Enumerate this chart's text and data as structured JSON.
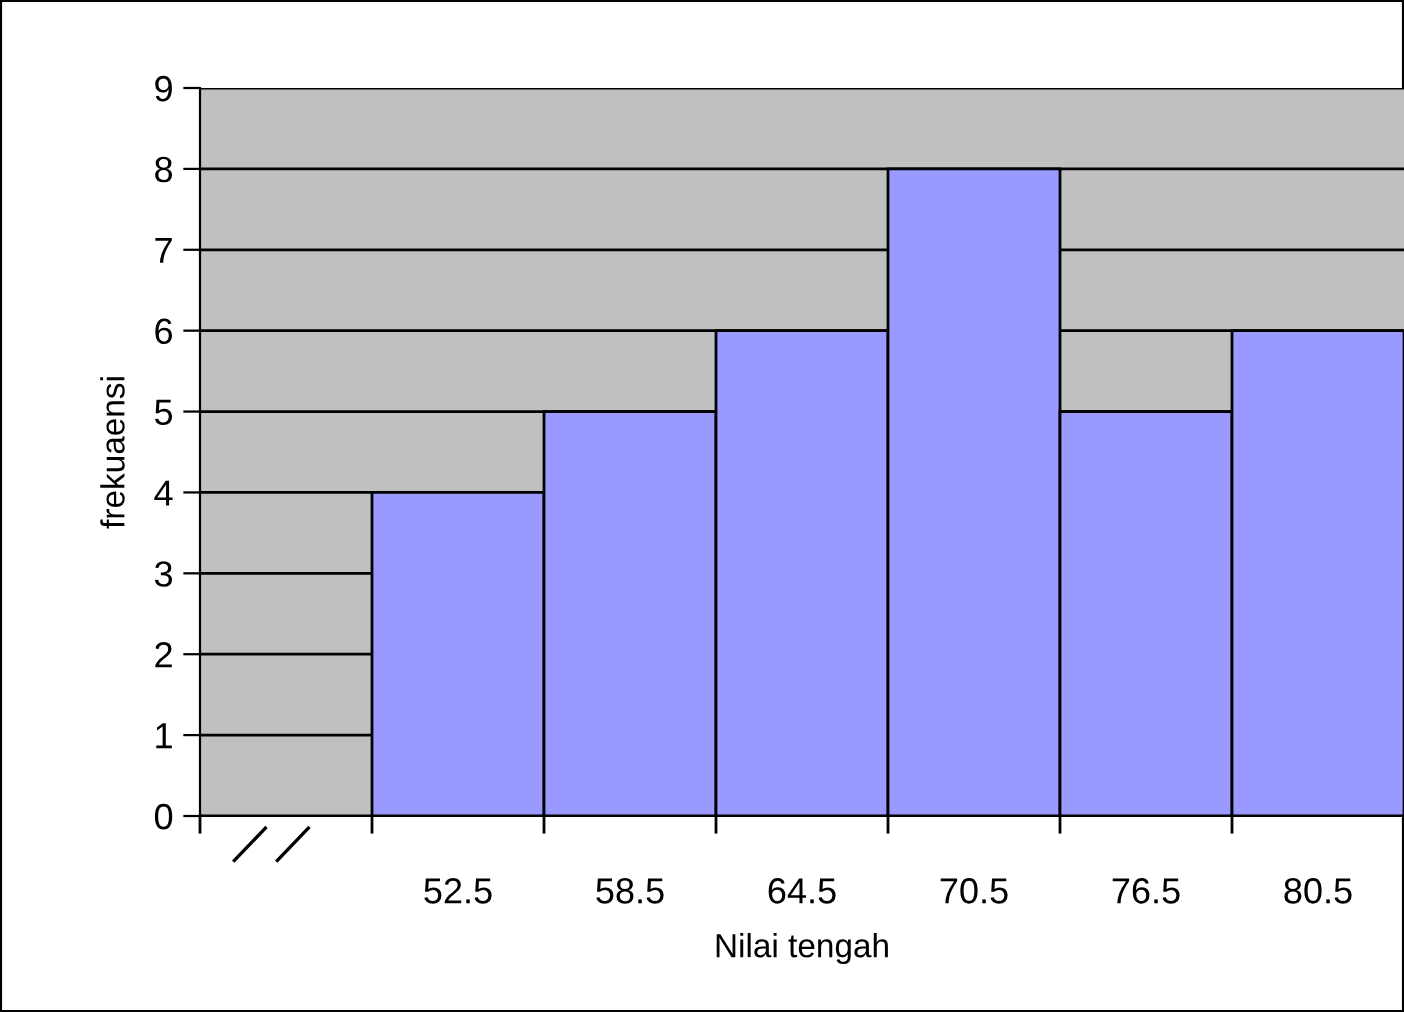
{
  "chart_data": {
    "type": "bar",
    "xlabel": "Nilai tengah",
    "ylabel": "frekuaensi",
    "categories": [
      null,
      "52.5",
      "58.5",
      "64.5",
      "70.5",
      "76.5",
      "80.5"
    ],
    "values": [
      null,
      4,
      5,
      6,
      8,
      5,
      6
    ],
    "color": "#9999ff",
    "ylim": [
      0,
      9
    ],
    "yticks": [
      0,
      1,
      2,
      3,
      4,
      5,
      6,
      7,
      8,
      9
    ],
    "grid": "y",
    "legend": false
  }
}
